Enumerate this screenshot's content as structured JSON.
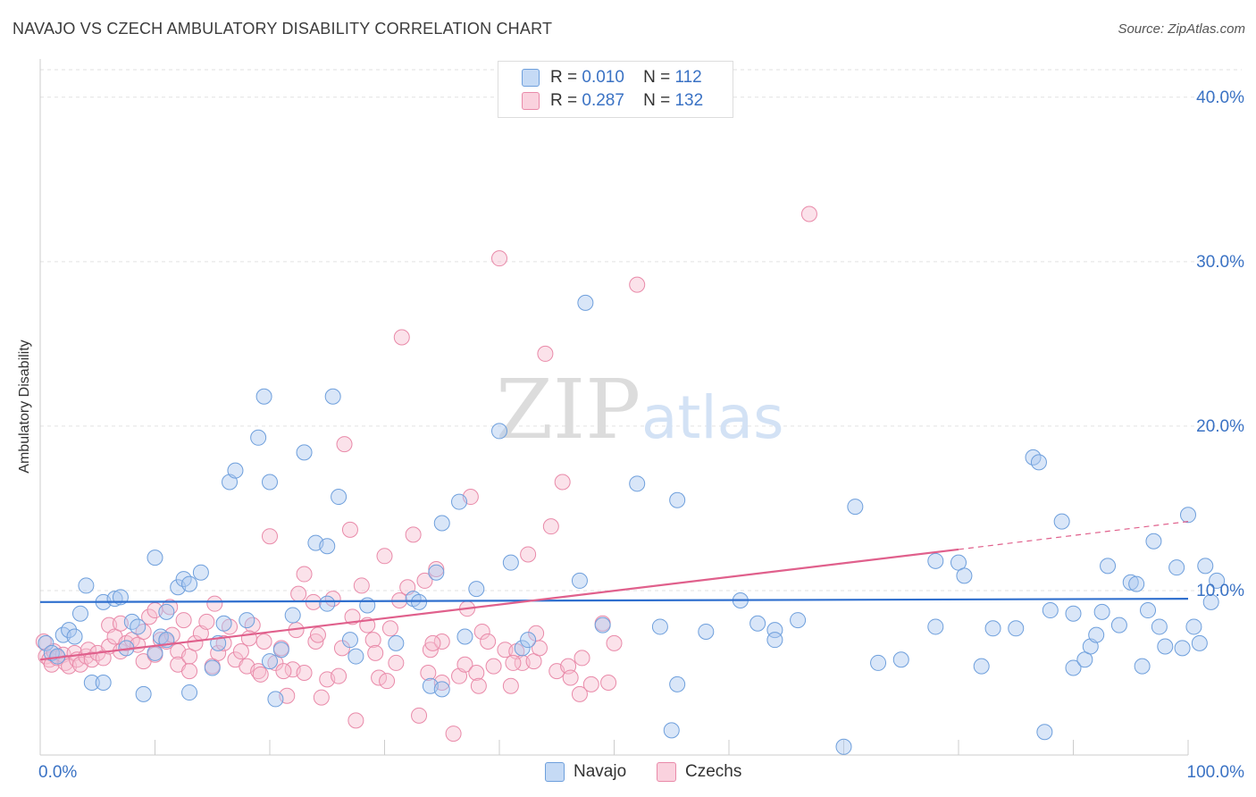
{
  "title": "NAVAJO VS CZECH AMBULATORY DISABILITY CORRELATION CHART",
  "source": "Source: ZipAtlas.com",
  "watermark": {
    "zip": "ZIP",
    "atlas": "atlas"
  },
  "legend_top": [
    {
      "r_label": "R =",
      "r_value": "0.010",
      "n_label": "N =",
      "n_value": "112"
    },
    {
      "r_label": "R =",
      "r_value": "0.287",
      "n_label": "N =",
      "n_value": "132"
    }
  ],
  "colors": {
    "navajo_fill": "#aac8ef",
    "navajo_stroke": "#6e9fdc",
    "navajo_line": "#2f6fce",
    "czech_fill": "#f7bfd0",
    "czech_stroke": "#e98aa9",
    "czech_line": "#e0608c",
    "axis_text": "#3a72c4",
    "grid": "#e2e2e2"
  },
  "chart_data": {
    "type": "scatter",
    "title": "NAVAJO VS CZECH AMBULATORY DISABILITY CORRELATION CHART",
    "xlabel": "",
    "ylabel": "Ambulatory Disability",
    "xlim": [
      0,
      100
    ],
    "ylim": [
      0,
      42
    ],
    "x_tick_labels": [
      "0.0%",
      "100.0%"
    ],
    "y_ticks": [
      10,
      20,
      30,
      40
    ],
    "y_tick_labels": [
      "10.0%",
      "20.0%",
      "30.0%",
      "40.0%"
    ],
    "grid": true,
    "legend_position": "bottom-center",
    "series": [
      {
        "name": "Navajo",
        "r": 0.01,
        "n": 112,
        "trend": {
          "x": [
            0,
            100
          ],
          "y": [
            9.3,
            9.5
          ]
        },
        "points": [
          [
            0.5,
            6.8
          ],
          [
            1,
            6.2
          ],
          [
            1.5,
            6.0
          ],
          [
            2,
            7.3
          ],
          [
            2.5,
            7.6
          ],
          [
            3,
            7.2
          ],
          [
            3.5,
            8.6
          ],
          [
            4,
            10.3
          ],
          [
            4.5,
            4.4
          ],
          [
            5.5,
            4.4
          ],
          [
            5.5,
            9.3
          ],
          [
            6.5,
            9.5
          ],
          [
            7,
            9.6
          ],
          [
            7.5,
            6.5
          ],
          [
            8,
            8.1
          ],
          [
            8.5,
            7.8
          ],
          [
            9,
            3.7
          ],
          [
            10,
            6.2
          ],
          [
            10,
            12.0
          ],
          [
            10.5,
            7.2
          ],
          [
            11,
            7.0
          ],
          [
            11,
            8.7
          ],
          [
            12,
            10.2
          ],
          [
            12.5,
            10.7
          ],
          [
            13,
            10.4
          ],
          [
            13,
            3.8
          ],
          [
            14,
            11.1
          ],
          [
            15,
            5.3
          ],
          [
            15.5,
            6.8
          ],
          [
            16,
            8.0
          ],
          [
            16.5,
            16.6
          ],
          [
            17,
            17.3
          ],
          [
            18,
            8.2
          ],
          [
            19,
            19.3
          ],
          [
            19.5,
            21.8
          ],
          [
            20,
            16.6
          ],
          [
            20,
            5.7
          ],
          [
            20.5,
            3.4
          ],
          [
            21,
            6.4
          ],
          [
            22,
            8.5
          ],
          [
            23,
            18.4
          ],
          [
            24,
            12.9
          ],
          [
            25,
            12.7
          ],
          [
            25,
            9.2
          ],
          [
            25.5,
            21.8
          ],
          [
            26,
            15.7
          ],
          [
            27,
            7.0
          ],
          [
            27.5,
            6.0
          ],
          [
            28.5,
            9.1
          ],
          [
            31,
            6.8
          ],
          [
            32.5,
            9.5
          ],
          [
            33,
            9.3
          ],
          [
            34,
            4.2
          ],
          [
            34.5,
            11.1
          ],
          [
            35,
            14.1
          ],
          [
            35,
            4.0
          ],
          [
            36.5,
            15.4
          ],
          [
            37,
            7.2
          ],
          [
            38,
            10.1
          ],
          [
            40,
            19.7
          ],
          [
            41,
            11.7
          ],
          [
            42,
            6.5
          ],
          [
            42.5,
            7.0
          ],
          [
            47,
            10.6
          ],
          [
            47.5,
            27.5
          ],
          [
            49,
            7.9
          ],
          [
            52,
            16.5
          ],
          [
            54,
            7.8
          ],
          [
            55,
            1.5
          ],
          [
            55.5,
            15.5
          ],
          [
            55.5,
            4.3
          ],
          [
            58,
            7.5
          ],
          [
            61,
            9.4
          ],
          [
            62.5,
            8.0
          ],
          [
            64,
            7.6
          ],
          [
            64,
            7.0
          ],
          [
            66,
            8.2
          ],
          [
            70,
            0.5
          ],
          [
            71,
            15.1
          ],
          [
            73,
            5.6
          ],
          [
            75,
            5.8
          ],
          [
            78,
            7.8
          ],
          [
            78,
            11.8
          ],
          [
            80,
            11.7
          ],
          [
            80.5,
            10.9
          ],
          [
            82,
            5.4
          ],
          [
            83,
            7.7
          ],
          [
            85,
            7.7
          ],
          [
            86.5,
            18.1
          ],
          [
            87,
            17.8
          ],
          [
            87.5,
            1.4
          ],
          [
            88,
            8.8
          ],
          [
            89,
            14.2
          ],
          [
            90,
            5.3
          ],
          [
            90,
            8.6
          ],
          [
            91,
            5.8
          ],
          [
            91.5,
            6.6
          ],
          [
            92,
            7.3
          ],
          [
            92.5,
            8.7
          ],
          [
            93,
            11.5
          ],
          [
            94,
            7.9
          ],
          [
            95,
            10.5
          ],
          [
            95.5,
            10.4
          ],
          [
            96,
            5.4
          ],
          [
            96.5,
            8.8
          ],
          [
            97,
            13.0
          ],
          [
            97.5,
            7.8
          ],
          [
            98,
            6.6
          ],
          [
            99,
            11.4
          ],
          [
            99.5,
            6.5
          ],
          [
            100,
            14.6
          ],
          [
            100.5,
            7.8
          ],
          [
            101,
            6.8
          ],
          [
            101.5,
            11.5
          ],
          [
            102,
            9.3
          ],
          [
            102.5,
            10.6
          ]
        ]
      },
      {
        "name": "Czechs",
        "r": 0.287,
        "n": 132,
        "trend": {
          "x": [
            0,
            80
          ],
          "y": [
            5.8,
            12.5
          ]
        },
        "trend_dashed": {
          "x": [
            80,
            100
          ],
          "y": [
            12.5,
            14.2
          ]
        },
        "points": [
          [
            0.3,
            6.9
          ],
          [
            0.5,
            6.0
          ],
          [
            0.8,
            5.8
          ],
          [
            1,
            5.5
          ],
          [
            1.2,
            6.3
          ],
          [
            1.5,
            5.9
          ],
          [
            2,
            6.1
          ],
          [
            2.2,
            5.6
          ],
          [
            2.5,
            5.4
          ],
          [
            3,
            6.2
          ],
          [
            3.2,
            5.8
          ],
          [
            3.5,
            5.5
          ],
          [
            4,
            6.0
          ],
          [
            4.2,
            6.4
          ],
          [
            4.5,
            5.8
          ],
          [
            5,
            6.2
          ],
          [
            5.5,
            5.9
          ],
          [
            6,
            6.6
          ],
          [
            6,
            7.9
          ],
          [
            6.5,
            7.2
          ],
          [
            7,
            6.3
          ],
          [
            7,
            8.0
          ],
          [
            7.5,
            6.8
          ],
          [
            8,
            7.0
          ],
          [
            8.5,
            6.7
          ],
          [
            9,
            7.5
          ],
          [
            9,
            5.7
          ],
          [
            9.5,
            8.4
          ],
          [
            10,
            6.1
          ],
          [
            10,
            8.8
          ],
          [
            10.5,
            7.0
          ],
          [
            11,
            6.9
          ],
          [
            11.5,
            7.3
          ],
          [
            12,
            6.3
          ],
          [
            12,
            5.5
          ],
          [
            12.5,
            8.2
          ],
          [
            13,
            6.0
          ],
          [
            13,
            5.1
          ],
          [
            13.5,
            6.8
          ],
          [
            14,
            7.4
          ],
          [
            14.5,
            8.1
          ],
          [
            15,
            5.4
          ],
          [
            15.5,
            6.2
          ],
          [
            16,
            6.8
          ],
          [
            16.5,
            7.8
          ],
          [
            17,
            5.8
          ],
          [
            17.5,
            6.3
          ],
          [
            18,
            5.4
          ],
          [
            18.5,
            7.9
          ],
          [
            19,
            5.1
          ],
          [
            19.5,
            6.9
          ],
          [
            20,
            13.3
          ],
          [
            20.5,
            5.6
          ],
          [
            21,
            6.5
          ],
          [
            21.5,
            3.6
          ],
          [
            22,
            5.2
          ],
          [
            22.5,
            9.8
          ],
          [
            23,
            5.0
          ],
          [
            23,
            11.0
          ],
          [
            24,
            6.9
          ],
          [
            24.5,
            3.5
          ],
          [
            25,
            4.6
          ],
          [
            25.5,
            9.5
          ],
          [
            26,
            4.8
          ],
          [
            26.5,
            18.9
          ],
          [
            27,
            13.7
          ],
          [
            27.5,
            2.1
          ],
          [
            28,
            10.3
          ],
          [
            28.5,
            7.9
          ],
          [
            29,
            7.0
          ],
          [
            29.5,
            4.7
          ],
          [
            30,
            12.1
          ],
          [
            30.5,
            7.7
          ],
          [
            31,
            5.6
          ],
          [
            31.5,
            25.4
          ],
          [
            32,
            10.2
          ],
          [
            32.5,
            13.4
          ],
          [
            33,
            2.4
          ],
          [
            33.5,
            10.6
          ],
          [
            34,
            6.4
          ],
          [
            34.5,
            11.3
          ],
          [
            35,
            4.4
          ],
          [
            35,
            6.9
          ],
          [
            36,
            1.3
          ],
          [
            36.5,
            4.8
          ],
          [
            37,
            5.5
          ],
          [
            37.5,
            15.7
          ],
          [
            38,
            5.0
          ],
          [
            38.5,
            7.5
          ],
          [
            39,
            6.9
          ],
          [
            39.5,
            5.4
          ],
          [
            40,
            30.2
          ],
          [
            40.5,
            6.4
          ],
          [
            41,
            4.2
          ],
          [
            41.5,
            6.3
          ],
          [
            42,
            5.6
          ],
          [
            42.5,
            12.2
          ],
          [
            43,
            5.7
          ],
          [
            43.5,
            6.5
          ],
          [
            44,
            24.4
          ],
          [
            44.5,
            13.9
          ],
          [
            45,
            5.1
          ],
          [
            45.5,
            16.6
          ],
          [
            46,
            5.4
          ],
          [
            47,
            3.7
          ],
          [
            48,
            4.3
          ],
          [
            49,
            8.0
          ],
          [
            49.5,
            4.4
          ],
          [
            50,
            6.8
          ],
          [
            52,
            28.6
          ],
          [
            67,
            32.9
          ],
          [
            19.2,
            4.9
          ],
          [
            23.8,
            9.3
          ],
          [
            29.2,
            6.2
          ],
          [
            33.8,
            5.0
          ],
          [
            37.2,
            8.9
          ],
          [
            41.2,
            5.6
          ],
          [
            46.2,
            4.7
          ],
          [
            15.2,
            9.2
          ],
          [
            18.2,
            7.1
          ],
          [
            21.2,
            5.1
          ],
          [
            24.2,
            7.3
          ],
          [
            27.2,
            8.4
          ],
          [
            30.2,
            4.5
          ],
          [
            34.2,
            6.8
          ],
          [
            38.2,
            4.2
          ],
          [
            43.2,
            7.4
          ],
          [
            47.2,
            5.9
          ],
          [
            11.3,
            9.0
          ],
          [
            22.3,
            7.6
          ],
          [
            26.3,
            6.5
          ],
          [
            31.3,
            9.4
          ]
        ]
      }
    ]
  }
}
